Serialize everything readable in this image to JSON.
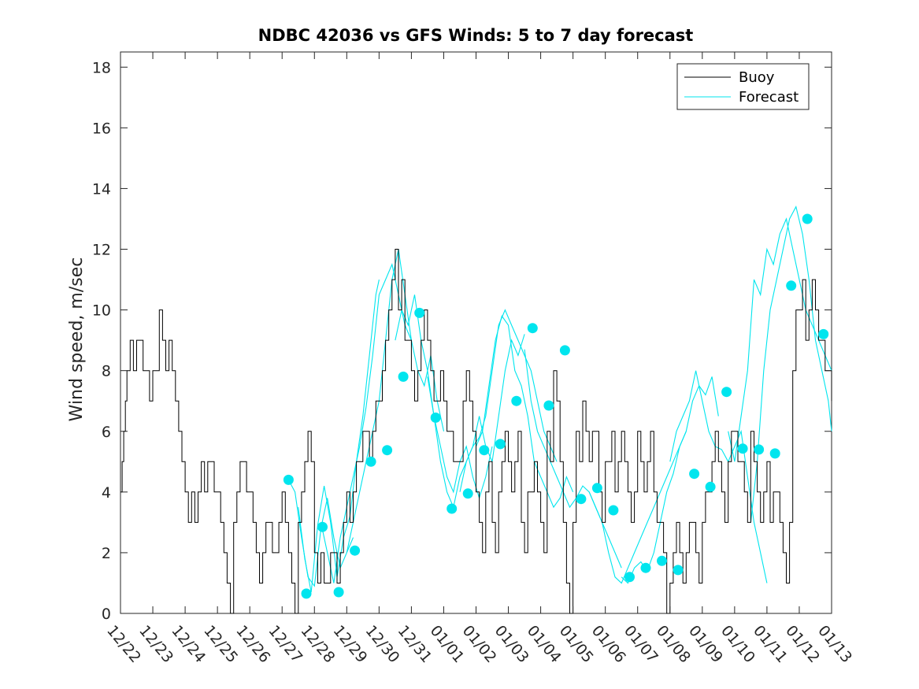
{
  "chart_data": {
    "type": "line",
    "title": "NDBC 42036 vs GFS Winds: 5 to 7 day forecast",
    "xlabel": "",
    "ylabel": "Wind speed, m/sec",
    "xlim": [
      0,
      22
    ],
    "ylim": [
      0,
      18.5
    ],
    "y_ticks": [
      "0",
      "2",
      "4",
      "6",
      "8",
      "10",
      "12",
      "14",
      "16",
      "18"
    ],
    "x_ticks": [
      "12/22",
      "12/23",
      "12/24",
      "12/25",
      "12/26",
      "12/27",
      "12/28",
      "12/29",
      "12/30",
      "12/31",
      "01/01",
      "01/02",
      "01/03",
      "01/04",
      "01/05",
      "01/06",
      "01/07",
      "01/08",
      "01/09",
      "01/10",
      "01/11",
      "01/12",
      "01/13"
    ],
    "legend": {
      "position": "top-right",
      "entries": [
        "Buoy",
        "Forecast"
      ]
    },
    "colors": {
      "buoy": "#000000",
      "forecast": "#00e5ee",
      "axes": "#262626"
    },
    "buoy": {
      "name": "Buoy",
      "x": [
        0.0,
        0.05,
        0.1,
        0.15,
        0.2,
        0.3,
        0.4,
        0.5,
        0.6,
        0.7,
        0.8,
        0.9,
        1.0,
        1.1,
        1.2,
        1.3,
        1.4,
        1.5,
        1.6,
        1.7,
        1.8,
        1.9,
        2.0,
        2.1,
        2.2,
        2.3,
        2.4,
        2.5,
        2.6,
        2.7,
        2.8,
        2.9,
        3.0,
        3.1,
        3.2,
        3.3,
        3.4,
        3.5,
        3.6,
        3.7,
        3.8,
        3.9,
        4.0,
        4.1,
        4.2,
        4.3,
        4.4,
        4.5,
        4.6,
        4.7,
        4.8,
        4.9,
        5.0,
        5.1,
        5.2,
        5.3,
        5.4,
        5.5,
        5.6,
        5.7,
        5.8,
        5.9,
        6.0,
        6.1,
        6.2,
        6.3,
        6.4,
        6.5,
        6.6,
        6.7,
        6.8,
        6.9,
        7.0,
        7.1,
        7.2,
        7.3,
        7.4,
        7.5,
        7.6,
        7.7,
        7.8,
        7.9,
        8.0,
        8.1,
        8.2,
        8.3,
        8.4,
        8.5,
        8.6,
        8.7,
        8.8,
        8.9,
        9.0,
        9.1,
        9.2,
        9.3,
        9.4,
        9.5,
        9.6,
        9.7,
        9.8,
        9.9,
        10.0,
        10.1,
        10.2,
        10.3,
        10.4,
        10.5,
        10.6,
        10.7,
        10.8,
        10.9,
        11.0,
        11.1,
        11.2,
        11.3,
        11.4,
        11.5,
        11.6,
        11.7,
        11.8,
        11.9,
        12.0,
        12.1,
        12.2,
        12.3,
        12.4,
        12.5,
        12.6,
        12.7,
        12.8,
        12.9,
        13.0,
        13.1,
        13.2,
        13.3,
        13.4,
        13.5,
        13.6,
        13.7,
        13.8,
        13.9,
        14.0,
        14.1,
        14.2,
        14.3,
        14.4,
        14.5,
        14.6,
        14.7,
        14.8,
        14.9,
        15.0,
        15.1,
        15.2,
        15.3,
        15.4,
        15.5,
        15.6,
        15.7,
        15.8,
        15.9,
        16.0,
        16.1,
        16.2,
        16.3,
        16.4,
        16.5,
        16.6,
        16.7,
        16.8,
        16.9,
        17.0,
        17.1,
        17.2,
        17.3,
        17.4,
        17.5,
        17.6,
        17.7,
        17.8,
        17.9,
        18.0,
        18.1,
        18.2,
        18.3,
        18.4,
        18.5,
        18.6,
        18.7,
        18.8,
        18.9,
        19.0,
        19.1,
        19.2,
        19.3,
        19.4,
        19.5,
        19.6,
        19.7,
        19.8,
        19.9,
        20.0,
        20.1,
        20.2,
        20.3,
        20.4,
        20.5,
        20.6,
        20.7,
        20.8,
        20.9,
        21.0,
        21.1,
        21.2,
        21.3,
        21.4,
        21.5,
        21.6,
        21.7,
        21.8,
        21.9,
        22.0
      ],
      "values": [
        4,
        5,
        6,
        7,
        8,
        9,
        8,
        9,
        9,
        8,
        8,
        7,
        8,
        8,
        10,
        9,
        8,
        9,
        8,
        7,
        6,
        5,
        4,
        3,
        4,
        3,
        4,
        5,
        4,
        5,
        5,
        4,
        4,
        3,
        2,
        1,
        0,
        3,
        4,
        5,
        5,
        4,
        4,
        3,
        2,
        1,
        2,
        3,
        3,
        2,
        2,
        3,
        4,
        3,
        2,
        1,
        0,
        3,
        4,
        5,
        6,
        5,
        2,
        1,
        2,
        1,
        1,
        2,
        2,
        1,
        2,
        3,
        4,
        3,
        4,
        5,
        5,
        6,
        6,
        5,
        6,
        7,
        7,
        8,
        9,
        10,
        11,
        12,
        10,
        11,
        9,
        9,
        8,
        7,
        8,
        9,
        10,
        9,
        8,
        7,
        7,
        8,
        7,
        6,
        6,
        5,
        5,
        5,
        7,
        8,
        7,
        6,
        4,
        3,
        2,
        4,
        5,
        3,
        2,
        4,
        5,
        6,
        5,
        4,
        5,
        6,
        3,
        2,
        4,
        4,
        5,
        4,
        3,
        2,
        6,
        5,
        8,
        7,
        5,
        3,
        1,
        0,
        3,
        6,
        5,
        7,
        6,
        5,
        6,
        6,
        4,
        3,
        5,
        5,
        6,
        4,
        5,
        6,
        5,
        4,
        3,
        4,
        6,
        5,
        4,
        5,
        6,
        4,
        3,
        3,
        2,
        0,
        1,
        2,
        3,
        2,
        1,
        2,
        3,
        3,
        2,
        1,
        3,
        4,
        4,
        5,
        6,
        5,
        4,
        3,
        5,
        6,
        6,
        5,
        5,
        4,
        3,
        6,
        5,
        4,
        3,
        4,
        5,
        3,
        4,
        4,
        3,
        2,
        1,
        3,
        8,
        10,
        10,
        11,
        9,
        10,
        11,
        10,
        9,
        9,
        8,
        8,
        7
      ]
    },
    "forecast_lines": [
      {
        "name": "Forecast",
        "x": [
          5.2,
          5.4,
          5.6,
          5.8,
          6.0,
          6.2,
          6.4,
          6.6,
          6.8,
          7.0,
          7.2
        ],
        "values": [
          4.4,
          4.0,
          2.5,
          1.2,
          0.9,
          2.8,
          3.8,
          2.5,
          1.5,
          2.0,
          2.5
        ]
      },
      {
        "name": "Forecast",
        "x": [
          5.5,
          5.7,
          5.9,
          6.1,
          6.3,
          6.5,
          6.7,
          6.9,
          7.1,
          7.3,
          7.5,
          7.7,
          7.9,
          8.0
        ],
        "values": [
          3.5,
          1.8,
          0.7,
          2.9,
          4.2,
          3.0,
          1.2,
          2.5,
          3.2,
          5.0,
          6.5,
          8.5,
          10.5,
          11.0
        ]
      },
      {
        "name": "Forecast",
        "x": [
          6.2,
          6.4,
          6.6,
          6.8,
          7.0,
          7.2,
          7.4,
          7.6,
          7.8,
          8.0,
          8.2,
          8.4,
          8.6,
          8.8,
          9.0
        ],
        "values": [
          3.0,
          2.0,
          1.0,
          2.5,
          3.5,
          4.5,
          5.5,
          6.8,
          8.5,
          10.5,
          11.0,
          11.5,
          10.5,
          9.5,
          9.0
        ]
      },
      {
        "name": "Forecast",
        "x": [
          7.0,
          7.2,
          7.4,
          7.6,
          7.8,
          8.0,
          8.2,
          8.4,
          8.6,
          8.8,
          9.0,
          9.2,
          9.4,
          9.6,
          9.8,
          10.0
        ],
        "values": [
          2.0,
          3.0,
          4.0,
          5.0,
          6.0,
          7.0,
          9.0,
          11.0,
          12.0,
          10.5,
          9.0,
          8.0,
          7.5,
          8.5,
          7.0,
          6.0
        ]
      },
      {
        "name": "Forecast",
        "x": [
          8.5,
          8.7,
          8.9,
          9.1,
          9.3,
          9.5,
          9.7,
          9.9,
          10.1,
          10.3,
          10.5,
          10.7,
          10.9,
          11.1,
          11.3,
          11.5
        ],
        "values": [
          9.0,
          10.0,
          9.5,
          10.5,
          9.0,
          8.0,
          6.5,
          5.5,
          4.5,
          4.0,
          5.0,
          5.5,
          4.5,
          3.8,
          4.5,
          5.5
        ]
      },
      {
        "name": "Forecast",
        "x": [
          9.5,
          9.7,
          9.9,
          10.1,
          10.3,
          10.5,
          10.7,
          10.9,
          11.1,
          11.3,
          11.5,
          11.7,
          11.9,
          12.1,
          12.3,
          12.5
        ],
        "values": [
          7.8,
          6.5,
          5.0,
          4.0,
          3.5,
          4.5,
          5.0,
          5.5,
          6.5,
          5.5,
          5.0,
          6.5,
          8.0,
          9.0,
          8.5,
          9.2
        ]
      },
      {
        "name": "Forecast",
        "x": [
          10.5,
          10.7,
          10.9,
          11.1,
          11.3,
          11.5,
          11.7,
          11.9,
          12.1,
          12.3,
          12.5,
          12.7,
          12.9,
          13.1,
          13.3,
          13.5
        ],
        "values": [
          4.0,
          5.0,
          5.5,
          5.8,
          6.5,
          8.0,
          9.5,
          10.0,
          9.5,
          9.0,
          8.5,
          8.0,
          7.0,
          6.0,
          5.5,
          5.0
        ]
      },
      {
        "name": "Forecast",
        "x": [
          11.0,
          11.2,
          11.4,
          11.6,
          11.8,
          12.0,
          12.2,
          12.4,
          12.6,
          12.8,
          13.0,
          13.2,
          13.4,
          13.6,
          13.8,
          14.0
        ],
        "values": [
          5.5,
          6.0,
          7.5,
          9.0,
          9.8,
          9.5,
          8.0,
          7.5,
          6.5,
          5.0,
          4.5,
          4.0,
          3.5,
          3.8,
          4.5,
          4.0
        ]
      },
      {
        "name": "Forecast",
        "x": [
          12.5,
          12.7,
          12.9,
          13.1,
          13.3,
          13.5,
          13.7,
          13.9,
          14.1,
          14.3,
          14.5,
          14.7,
          14.9,
          15.1,
          15.3,
          15.5
        ],
        "values": [
          8.7,
          7.0,
          6.0,
          5.5,
          5.0,
          4.5,
          4.0,
          3.5,
          3.8,
          4.2,
          4.0,
          3.5,
          3.0,
          2.5,
          2.0,
          1.5
        ]
      },
      {
        "name": "Forecast",
        "x": [
          14.5,
          14.7,
          14.9,
          15.1,
          15.3,
          15.5,
          15.7,
          15.9,
          16.1,
          16.3,
          16.5,
          16.7,
          16.9,
          17.1,
          17.3,
          17.5
        ],
        "values": [
          4.0,
          3.5,
          3.0,
          2.0,
          1.2,
          1.0,
          1.5,
          2.0,
          2.5,
          3.0,
          3.5,
          4.0,
          4.5,
          5.0,
          5.5,
          6.0
        ]
      },
      {
        "name": "Forecast",
        "x": [
          15.5,
          15.7,
          15.9,
          16.1,
          16.3,
          16.5,
          16.7,
          16.9,
          17.1,
          17.3,
          17.5,
          17.7,
          17.9,
          18.1,
          18.3,
          18.5
        ],
        "values": [
          1.2,
          1.0,
          1.5,
          1.7,
          1.4,
          2.0,
          3.0,
          4.0,
          4.6,
          5.5,
          6.0,
          7.0,
          7.5,
          7.2,
          7.8,
          6.5
        ]
      },
      {
        "name": "Forecast",
        "x": [
          17.0,
          17.2,
          17.4,
          17.6,
          17.8,
          18.0,
          18.2,
          18.4,
          18.6,
          18.8,
          19.0,
          19.2,
          19.4,
          19.6,
          19.8,
          20.0
        ],
        "values": [
          5.0,
          6.0,
          6.5,
          7.0,
          8.0,
          7.0,
          6.0,
          5.5,
          5.4,
          5.0,
          5.5,
          6.0,
          4.5,
          3.0,
          2.0,
          1.0
        ]
      },
      {
        "name": "Forecast",
        "x": [
          18.8,
          19.0,
          19.2,
          19.4,
          19.6,
          19.8,
          20.0,
          20.2,
          20.4,
          20.6,
          20.8,
          21.0,
          21.2,
          21.4,
          21.6,
          21.8,
          22.0
        ],
        "values": [
          6.0,
          5.0,
          6.5,
          8.0,
          11.0,
          10.5,
          12.0,
          11.5,
          12.5,
          13.0,
          12.0,
          11.0,
          10.0,
          9.5,
          9.0,
          8.5,
          8.0
        ]
      },
      {
        "name": "Forecast",
        "x": [
          19.5,
          19.7,
          19.9,
          20.1,
          20.3,
          20.5,
          20.7,
          20.9,
          21.1,
          21.3,
          21.5,
          21.7,
          21.9,
          22.0
        ],
        "values": [
          3.0,
          5.0,
          8.0,
          10.0,
          11.0,
          12.0,
          13.0,
          13.4,
          12.5,
          11.0,
          9.0,
          8.0,
          7.0,
          6.0
        ]
      }
    ],
    "forecast_points": {
      "name": "Forecast",
      "x": [
        5.2,
        5.75,
        6.25,
        6.75,
        7.25,
        7.75,
        8.25,
        8.75,
        9.25,
        9.75,
        10.25,
        10.75,
        11.25,
        11.75,
        12.25,
        12.75,
        13.25,
        13.75,
        14.25,
        14.75,
        15.25,
        15.75,
        16.25,
        16.75,
        17.25,
        17.75,
        18.25,
        18.75,
        19.25,
        19.75,
        20.25,
        20.75,
        21.25,
        21.75
      ],
      "values": [
        4.4,
        0.65,
        2.85,
        0.7,
        2.07,
        5.0,
        5.38,
        7.8,
        9.9,
        6.45,
        3.45,
        3.95,
        5.38,
        5.58,
        7.0,
        9.4,
        6.85,
        8.67,
        3.77,
        4.13,
        3.4,
        1.2,
        1.5,
        1.73,
        1.43,
        4.6,
        4.17,
        7.3,
        5.43,
        5.4,
        5.27,
        10.8,
        13.0,
        9.2
      ]
    }
  }
}
